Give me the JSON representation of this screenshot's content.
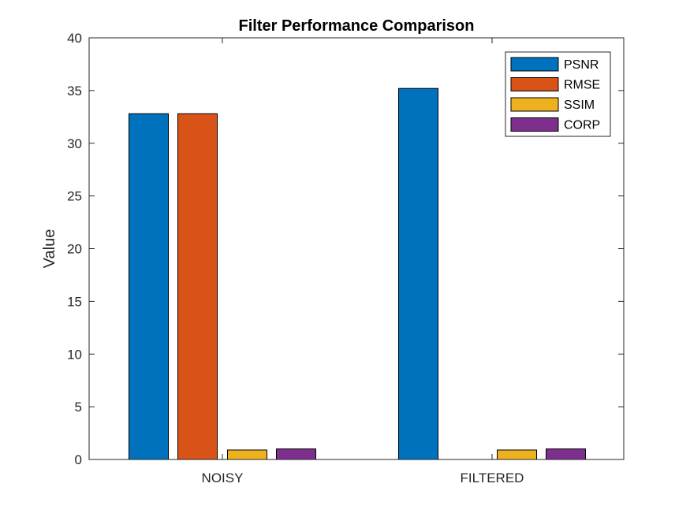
{
  "chart_data": {
    "type": "bar",
    "title": "Filter Performance Comparison",
    "xlabel": "",
    "ylabel": "Value",
    "categories": [
      "NOISY",
      "FILTERED"
    ],
    "ylim": [
      0,
      40
    ],
    "yticks": [
      0,
      5,
      10,
      15,
      20,
      25,
      30,
      35,
      40
    ],
    "grid": false,
    "legend_position": "top-right",
    "series": [
      {
        "name": "PSNR",
        "values": [
          32.8,
          35.2
        ],
        "color": "#0072BD"
      },
      {
        "name": "RMSE",
        "values": [
          32.8,
          0.0
        ],
        "color": "#D95319"
      },
      {
        "name": "SSIM",
        "values": [
          0.9,
          0.9
        ],
        "color": "#EDB120"
      },
      {
        "name": "CORP",
        "values": [
          1.0,
          1.0
        ],
        "color": "#7E2F8E"
      }
    ]
  }
}
